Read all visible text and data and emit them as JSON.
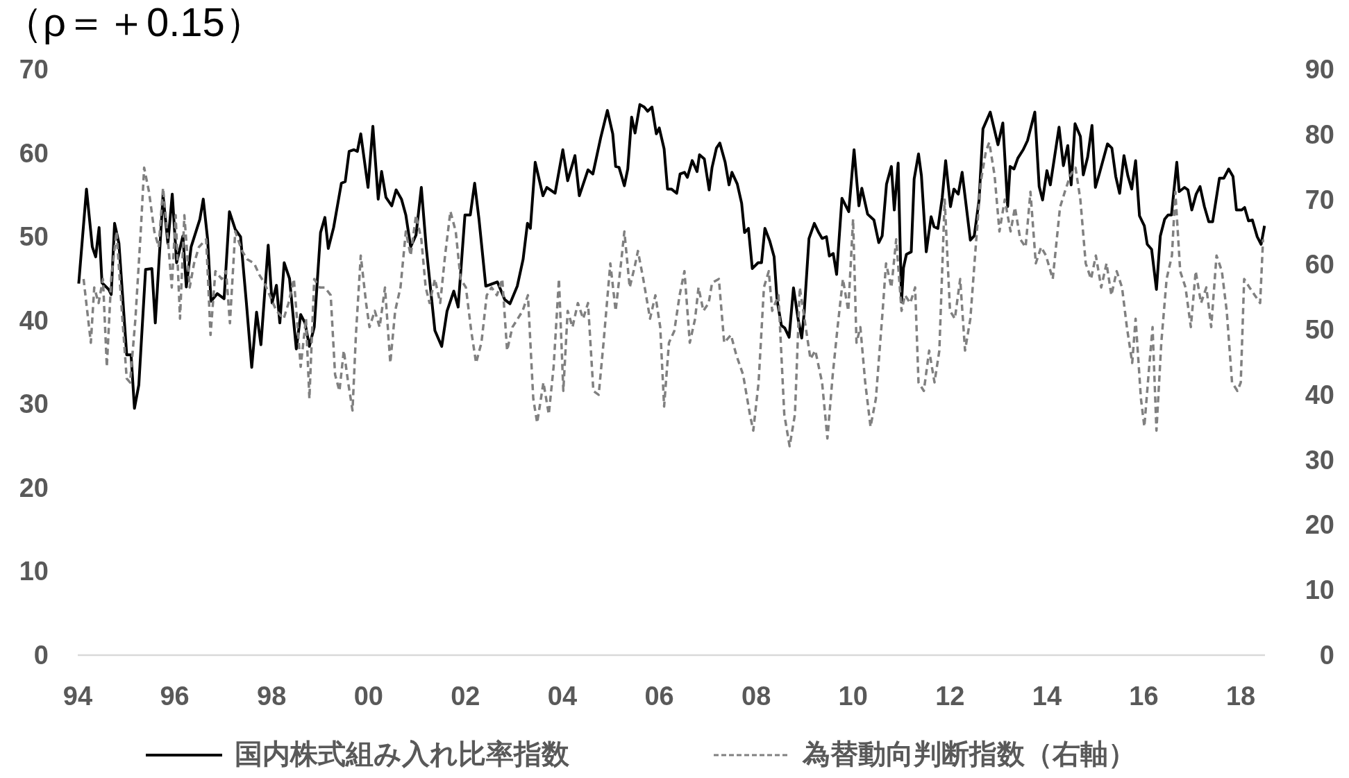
{
  "chart_data": {
    "type": "line",
    "title": "（ρ＝＋0.15）",
    "legend": "bottom",
    "xlim": [
      1994,
      2018.5
    ],
    "xticks": [
      {
        "value": 1994,
        "label": "94"
      },
      {
        "value": 1996,
        "label": "96"
      },
      {
        "value": 1998,
        "label": "98"
      },
      {
        "value": 2000,
        "label": "00"
      },
      {
        "value": 2002,
        "label": "02"
      },
      {
        "value": 2004,
        "label": "04"
      },
      {
        "value": 2006,
        "label": "06"
      },
      {
        "value": 2008,
        "label": "08"
      },
      {
        "value": 2010,
        "label": "10"
      },
      {
        "value": 2012,
        "label": "12"
      },
      {
        "value": 2014,
        "label": "14"
      },
      {
        "value": 2016,
        "label": "16"
      },
      {
        "value": 2018,
        "label": "18"
      }
    ],
    "ylim": [
      0,
      70
    ],
    "yticks": [
      0,
      10,
      20,
      30,
      40,
      50,
      60,
      70
    ],
    "y2lim": [
      0,
      90
    ],
    "y2ticks": [
      0,
      10,
      20,
      30,
      40,
      50,
      60,
      70,
      80,
      90
    ],
    "series": [
      {
        "name": "国内株式組み入れ比率指数",
        "color": "#000000",
        "line_style": "solid",
        "x": [
          1994.02,
          1994.18,
          1994.3,
          1994.37,
          1994.44,
          1994.5,
          1994.64,
          1994.69,
          1994.76,
          1994.85,
          1995.01,
          1995.1,
          1995.17,
          1995.26,
          1995.4,
          1995.53,
          1995.6,
          1995.76,
          1995.86,
          1995.95,
          1996.04,
          1996.17,
          1996.24,
          1996.34,
          1996.52,
          1996.59,
          1996.68,
          1996.75,
          1996.88,
          1997.02,
          1997.13,
          1997.25,
          1997.36,
          1997.48,
          1997.59,
          1997.69,
          1997.78,
          1997.93,
          1998.01,
          1998.1,
          1998.17,
          1998.26,
          1998.37,
          1998.51,
          1998.6,
          1998.69,
          1998.78,
          1998.88,
          1999.01,
          1999.1,
          1999.17,
          1999.28,
          1999.44,
          1999.52,
          1999.6,
          1999.7,
          1999.77,
          1999.84,
          1999.99,
          2000.09,
          2000.2,
          2000.27,
          2000.36,
          2000.48,
          2000.57,
          2000.68,
          2000.77,
          2000.87,
          2000.98,
          2001.09,
          2001.19,
          2001.37,
          2001.51,
          2001.62,
          2001.76,
          2001.85,
          2001.99,
          2002.1,
          2002.19,
          2002.28,
          2002.42,
          2002.66,
          2002.81,
          2002.92,
          2003.07,
          2003.19,
          2003.28,
          2003.34,
          2003.44,
          2003.6,
          2003.68,
          2003.85,
          2004.01,
          2004.11,
          2004.26,
          2004.35,
          2004.53,
          2004.63,
          2004.79,
          2004.93,
          2005.04,
          2005.1,
          2005.17,
          2005.28,
          2005.35,
          2005.43,
          2005.5,
          2005.6,
          2005.69,
          2005.76,
          2005.85,
          2005.94,
          2006.0,
          2006.1,
          2006.17,
          2006.25,
          2006.36,
          2006.43,
          2006.52,
          2006.58,
          2006.68,
          2006.78,
          2006.83,
          2006.93,
          2007.03,
          2007.09,
          2007.18,
          2007.25,
          2007.36,
          2007.44,
          2007.5,
          2007.61,
          2007.7,
          2007.76,
          2007.84,
          2007.92,
          2008.04,
          2008.11,
          2008.18,
          2008.28,
          2008.37,
          2008.43,
          2008.52,
          2008.59,
          2008.68,
          2008.77,
          2008.87,
          2008.94,
          2008.99,
          2009.09,
          2009.2,
          2009.29,
          2009.36,
          2009.45,
          2009.51,
          2009.59,
          2009.66,
          2009.77,
          2009.91,
          2010.02,
          2010.12,
          2010.18,
          2010.3,
          2010.43,
          2010.53,
          2010.6,
          2010.69,
          2010.79,
          2010.85,
          2010.93,
          2011.0,
          2011.04,
          2011.1,
          2011.2,
          2011.26,
          2011.35,
          2011.41,
          2011.51,
          2011.61,
          2011.67,
          2011.75,
          2011.84,
          2011.91,
          2012.01,
          2012.08,
          2012.17,
          2012.25,
          2012.42,
          2012.5,
          2012.6,
          2012.68,
          2012.83,
          2012.99,
          2013.09,
          2013.19,
          2013.24,
          2013.32,
          2013.4,
          2013.51,
          2013.6,
          2013.75,
          2013.84,
          2013.91,
          2014.0,
          2014.07,
          2014.25,
          2014.34,
          2014.43,
          2014.5,
          2014.58,
          2014.69,
          2014.75,
          2014.84,
          2014.93,
          2015.0,
          2015.08,
          2015.25,
          2015.34,
          2015.42,
          2015.5,
          2015.59,
          2015.67,
          2015.75,
          2015.83,
          2015.91,
          2016.01,
          2016.07,
          2016.16,
          2016.26,
          2016.34,
          2016.43,
          2016.5,
          2016.57,
          2016.68,
          2016.73,
          2016.84,
          2016.91,
          2016.99,
          2017.08,
          2017.16,
          2017.25,
          2017.34,
          2017.42,
          2017.56,
          2017.65,
          2017.75,
          2017.84,
          2017.91,
          2018.02,
          2018.08,
          2018.16,
          2018.24,
          2018.34,
          2018.42,
          2018.49
        ],
        "values": [
          44.4,
          55.7,
          48.8,
          47.6,
          51.1,
          44.5,
          43.7,
          43.1,
          51.6,
          49.2,
          35.9,
          35.9,
          29.5,
          32.3,
          46.1,
          46.2,
          39.7,
          55.0,
          49.2,
          55.1,
          46.9,
          50.1,
          44.0,
          48.8,
          52.1,
          54.5,
          49.7,
          42.3,
          43.2,
          42.6,
          53.0,
          50.9,
          50.0,
          42.1,
          34.4,
          41.0,
          37.1,
          49.0,
          42.1,
          44.2,
          39.7,
          46.9,
          45.0,
          36.6,
          40.7,
          39.7,
          36.9,
          39.2,
          50.5,
          52.3,
          48.6,
          51.1,
          56.4,
          56.6,
          60.2,
          60.4,
          60.2,
          62.3,
          55.9,
          63.2,
          54.5,
          57.8,
          54.7,
          53.7,
          55.6,
          54.5,
          52.6,
          48.8,
          50.2,
          55.9,
          48.8,
          38.8,
          36.9,
          41.1,
          43.5,
          41.6,
          52.6,
          52.6,
          56.4,
          52.1,
          44.1,
          44.6,
          42.5,
          42.0,
          44.1,
          47.3,
          51.6,
          51.0,
          58.9,
          54.9,
          55.9,
          55.2,
          60.4,
          56.7,
          59.7,
          54.9,
          58.0,
          57.5,
          61.8,
          65.1,
          62.3,
          58.4,
          58.3,
          56.1,
          58.1,
          64.3,
          62.4,
          65.8,
          65.5,
          65.0,
          65.5,
          62.3,
          63.0,
          60.5,
          55.7,
          55.7,
          55.2,
          57.5,
          57.7,
          57.1,
          59.1,
          57.8,
          59.8,
          59.3,
          55.6,
          58.3,
          60.6,
          61.2,
          58.9,
          56.2,
          57.7,
          56.3,
          54.0,
          50.5,
          51.0,
          46.2,
          46.9,
          46.9,
          51.0,
          49.5,
          47.6,
          42.5,
          39.4,
          39.1,
          38.0,
          43.9,
          40.0,
          37.9,
          40.9,
          49.8,
          51.6,
          50.5,
          49.8,
          50.0,
          47.7,
          48.0,
          45.5,
          54.6,
          53.0,
          60.4,
          53.7,
          55.8,
          52.7,
          52.0,
          49.3,
          50.1,
          56.3,
          58.4,
          53.2,
          58.8,
          42.2,
          46.3,
          47.9,
          48.2,
          56.9,
          59.9,
          57.3,
          48.2,
          52.4,
          51.2,
          51.0,
          54.7,
          59.1,
          53.6,
          55.7,
          55.1,
          57.7,
          49.6,
          50.1,
          54.4,
          62.9,
          64.9,
          61.0,
          63.6,
          53.6,
          58.4,
          58.1,
          59.4,
          60.4,
          61.5,
          64.9,
          56.0,
          54.4,
          57.9,
          56.2,
          63.1,
          58.5,
          60.9,
          56.2,
          63.5,
          62.0,
          57.4,
          59.5,
          63.3,
          55.9,
          57.5,
          61.1,
          60.6,
          57.2,
          55.2,
          59.7,
          57.3,
          55.7,
          59.1,
          52.5,
          51.3,
          49.1,
          48.5,
          43.7,
          50.1,
          52.1,
          52.6,
          52.6,
          58.9,
          55.4,
          55.9,
          55.6,
          53.2,
          55.1,
          56.0,
          53.6,
          51.8,
          51.8,
          57.0,
          57.0,
          58.1,
          57.2,
          53.2,
          53.2,
          53.5,
          51.9,
          52.0,
          50.0,
          49.1,
          51.3
        ]
      },
      {
        "name": "為替動向判断指数（右軸）",
        "color": "#808080",
        "line_style": "dashed",
        "axis": "y2",
        "x": [
          1994.12,
          1994.27,
          1994.34,
          1994.43,
          1994.52,
          1994.6,
          1994.69,
          1994.8,
          1994.91,
          1995.01,
          1995.08,
          1995.19,
          1995.3,
          1995.37,
          1995.47,
          1995.58,
          1995.67,
          1995.76,
          1995.86,
          1995.94,
          1996.02,
          1996.11,
          1996.2,
          1996.31,
          1996.4,
          1996.5,
          1996.65,
          1996.74,
          1996.84,
          1996.97,
          1997.06,
          1997.14,
          1997.25,
          1997.39,
          1997.5,
          1997.64,
          1997.75,
          1997.85,
          1997.96,
          1998.1,
          1998.25,
          1998.35,
          1998.46,
          1998.6,
          1998.71,
          1998.78,
          1998.88,
          1998.99,
          1999.1,
          1999.22,
          1999.31,
          1999.4,
          1999.49,
          1999.58,
          1999.67,
          1999.74,
          1999.84,
          1999.95,
          2000.02,
          2000.13,
          2000.23,
          2000.34,
          2000.45,
          2000.55,
          2000.66,
          2000.77,
          2000.87,
          2000.98,
          2001.09,
          2001.18,
          2001.26,
          2001.37,
          2001.48,
          2001.58,
          2001.69,
          2001.8,
          2001.9,
          2002.01,
          2002.12,
          2002.22,
          2002.33,
          2002.44,
          2002.54,
          2002.65,
          2002.76,
          2002.86,
          2002.97,
          2003.08,
          2003.18,
          2003.29,
          2003.4,
          2003.48,
          2003.61,
          2003.72,
          2003.82,
          2003.93,
          2004.02,
          2004.11,
          2004.21,
          2004.32,
          2004.43,
          2004.53,
          2004.64,
          2004.75,
          2004.85,
          2004.99,
          2005.1,
          2005.21,
          2005.28,
          2005.39,
          2005.49,
          2005.56,
          2005.67,
          2005.81,
          2005.92,
          2006.02,
          2006.1,
          2006.2,
          2006.31,
          2006.42,
          2006.52,
          2006.63,
          2006.74,
          2006.81,
          2006.91,
          2007.02,
          2007.09,
          2007.23,
          2007.34,
          2007.48,
          2007.59,
          2007.73,
          2007.87,
          2007.94,
          2008.05,
          2008.16,
          2008.26,
          2008.33,
          2008.46,
          2008.58,
          2008.69,
          2008.8,
          2008.9,
          2009.01,
          2009.12,
          2009.22,
          2009.36,
          2009.47,
          2009.58,
          2009.68,
          2009.79,
          2009.9,
          2010.0,
          2010.07,
          2010.15,
          2010.25,
          2010.36,
          2010.47,
          2010.61,
          2010.68,
          2010.79,
          2010.89,
          2011.0,
          2011.07,
          2011.18,
          2011.28,
          2011.35,
          2011.46,
          2011.57,
          2011.68,
          2011.78,
          2011.89,
          2012.0,
          2012.1,
          2012.21,
          2012.31,
          2012.42,
          2012.53,
          2012.63,
          2012.74,
          2012.81,
          2012.92,
          2013.02,
          2013.13,
          2013.25,
          2013.34,
          2013.45,
          2013.56,
          2013.66,
          2013.77,
          2013.88,
          2013.98,
          2014.12,
          2014.27,
          2014.37,
          2014.48,
          2014.59,
          2014.69,
          2014.8,
          2014.91,
          2015.01,
          2015.12,
          2015.23,
          2015.33,
          2015.44,
          2015.55,
          2015.65,
          2015.76,
          2015.83,
          2015.94,
          2016.01,
          2016.11,
          2016.18,
          2016.26,
          2016.36,
          2016.47,
          2016.58,
          2016.65,
          2016.75,
          2016.86,
          2016.97,
          2017.07,
          2017.18,
          2017.29,
          2017.39,
          2017.5,
          2017.61,
          2017.71,
          2017.82,
          2017.93,
          2018.0,
          2018.07,
          2018.18,
          2018.29,
          2018.4,
          2018.46
        ],
        "values": [
          57.8,
          48.0,
          56.5,
          54.1,
          57.8,
          44.3,
          57.8,
          65.1,
          52.9,
          42.5,
          41.9,
          51.7,
          65.1,
          74.9,
          71.2,
          65.1,
          62.7,
          71.8,
          63.9,
          56.5,
          67.6,
          51.7,
          67.6,
          56.5,
          60.2,
          62.7,
          63.9,
          49.2,
          59.0,
          57.8,
          59.0,
          51.0,
          65.1,
          62.1,
          60.8,
          60.2,
          58.4,
          57.2,
          55.3,
          52.9,
          51.7,
          54.1,
          57.8,
          44.3,
          51.7,
          39.4,
          57.8,
          56.5,
          56.5,
          55.3,
          43.1,
          40.6,
          46.8,
          41.9,
          37.6,
          49.2,
          61.4,
          54.1,
          50.4,
          52.9,
          50.4,
          56.5,
          44.9,
          52.9,
          56.5,
          65.1,
          61.4,
          67.6,
          63.9,
          56.5,
          54.1,
          57.8,
          54.1,
          61.4,
          68.2,
          65.1,
          57.8,
          56.5,
          49.8,
          44.9,
          48.0,
          55.3,
          56.5,
          55.3,
          57.8,
          46.8,
          50.4,
          51.7,
          52.9,
          55.3,
          39.4,
          35.7,
          41.9,
          37.0,
          44.3,
          57.8,
          40.6,
          52.9,
          50.4,
          54.1,
          51.7,
          54.1,
          40.6,
          40.0,
          48.0,
          60.2,
          52.9,
          60.2,
          65.1,
          56.5,
          59.6,
          62.1,
          57.8,
          51.7,
          55.3,
          50.4,
          38.2,
          48.0,
          49.8,
          55.3,
          59.0,
          48.0,
          51.7,
          56.5,
          52.9,
          54.1,
          57.2,
          57.8,
          48.0,
          49.2,
          46.1,
          43.1,
          37.0,
          34.5,
          41.9,
          56.5,
          59.0,
          52.9,
          55.3,
          37.0,
          32.1,
          37.0,
          56.5,
          51.0,
          45.5,
          46.8,
          41.9,
          33.3,
          43.1,
          50.4,
          57.8,
          52.9,
          67.0,
          48.0,
          50.4,
          41.9,
          35.1,
          39.4,
          52.9,
          60.2,
          56.5,
          63.9,
          52.9,
          55.3,
          54.1,
          56.5,
          41.9,
          40.6,
          46.8,
          41.9,
          46.8,
          70.0,
          52.9,
          51.7,
          57.8,
          46.8,
          51.7,
          62.7,
          72.5,
          77.4,
          78.8,
          73.7,
          65.1,
          70.0,
          65.1,
          68.8,
          63.9,
          62.7,
          71.2,
          60.2,
          62.7,
          61.4,
          57.8,
          68.8,
          71.2,
          73.7,
          74.9,
          70.0,
          60.2,
          57.8,
          61.4,
          56.5,
          60.2,
          55.3,
          59.0,
          56.5,
          50.4,
          44.9,
          51.7,
          39.4,
          35.1,
          44.3,
          50.4,
          34.5,
          48.0,
          57.8,
          61.4,
          71.2,
          59.0,
          56.5,
          50.4,
          59.0,
          54.1,
          56.5,
          50.4,
          61.4,
          59.0,
          52.9,
          41.9,
          40.6,
          41.9,
          57.8,
          56.5,
          55.3,
          54.1,
          63.9
        ]
      }
    ]
  }
}
